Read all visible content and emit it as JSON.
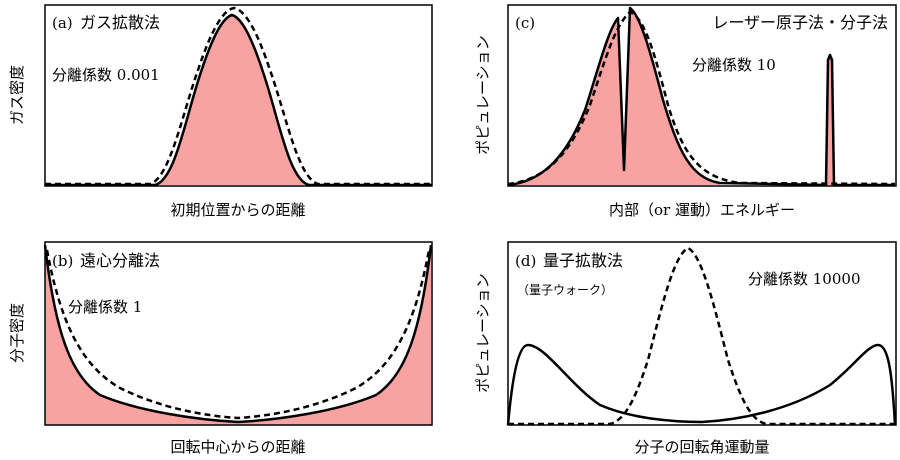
{
  "panels": {
    "a": {
      "tag": "(a)",
      "title": "ガス拡散法",
      "factor_label": "分離係数 0.001",
      "xlabel": "初期位置からの距離",
      "ylabel": "ガス密度"
    },
    "b": {
      "tag": "(b)",
      "title": "遠心分離法",
      "factor_label": "分離係数 1",
      "xlabel": "回転中心からの距離",
      "ylabel": "分子密度"
    },
    "c": {
      "tag": "(c)",
      "title": "レーザー原子法・分子法",
      "factor_label": "分離係数 10",
      "xlabel": "内部（or 運動）エネルギー",
      "ylabel": "ポピュレーション"
    },
    "d": {
      "tag": "(d)",
      "title": "量子拡散法",
      "subtitle": "（量子ウォーク）",
      "factor_label": "分離係数 10000",
      "xlabel": "分子の回転角運動量",
      "ylabel": "ポピュレーション"
    }
  },
  "colors": {
    "fill": "#f9a2a2",
    "line": "#000000",
    "frame": "#000000"
  }
}
